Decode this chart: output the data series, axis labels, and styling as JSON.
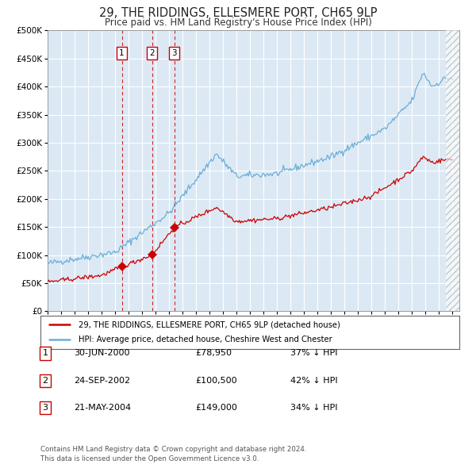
{
  "title": "29, THE RIDDINGS, ELLESMERE PORT, CH65 9LP",
  "subtitle": "Price paid vs. HM Land Registry's House Price Index (HPI)",
  "background_color": "#ffffff",
  "plot_bg_color": "#dce9f5",
  "hpi_color": "#6baed6",
  "price_color": "#cc0000",
  "grid_color": "#ffffff",
  "transactions": [
    {
      "label": "1",
      "date": "30-JUN-2000",
      "price": 78950,
      "year": 2000.5,
      "hpi_note": "37% ↓ HPI"
    },
    {
      "label": "2",
      "date": "24-SEP-2002",
      "price": 100500,
      "year": 2002.73,
      "hpi_note": "42% ↓ HPI"
    },
    {
      "label": "3",
      "date": "21-MAY-2004",
      "price": 149000,
      "year": 2004.38,
      "hpi_note": "34% ↓ HPI"
    }
  ],
  "legend_line1": "29, THE RIDDINGS, ELLESMERE PORT, CH65 9LP (detached house)",
  "legend_line2": "HPI: Average price, detached house, Cheshire West and Chester",
  "footer": "Contains HM Land Registry data © Crown copyright and database right 2024.\nThis data is licensed under the Open Government Licence v3.0.",
  "ylim": [
    0,
    500000
  ],
  "yticks": [
    0,
    50000,
    100000,
    150000,
    200000,
    250000,
    300000,
    350000,
    400000,
    450000,
    500000
  ],
  "xmin": 1995.0,
  "xmax": 2025.5
}
